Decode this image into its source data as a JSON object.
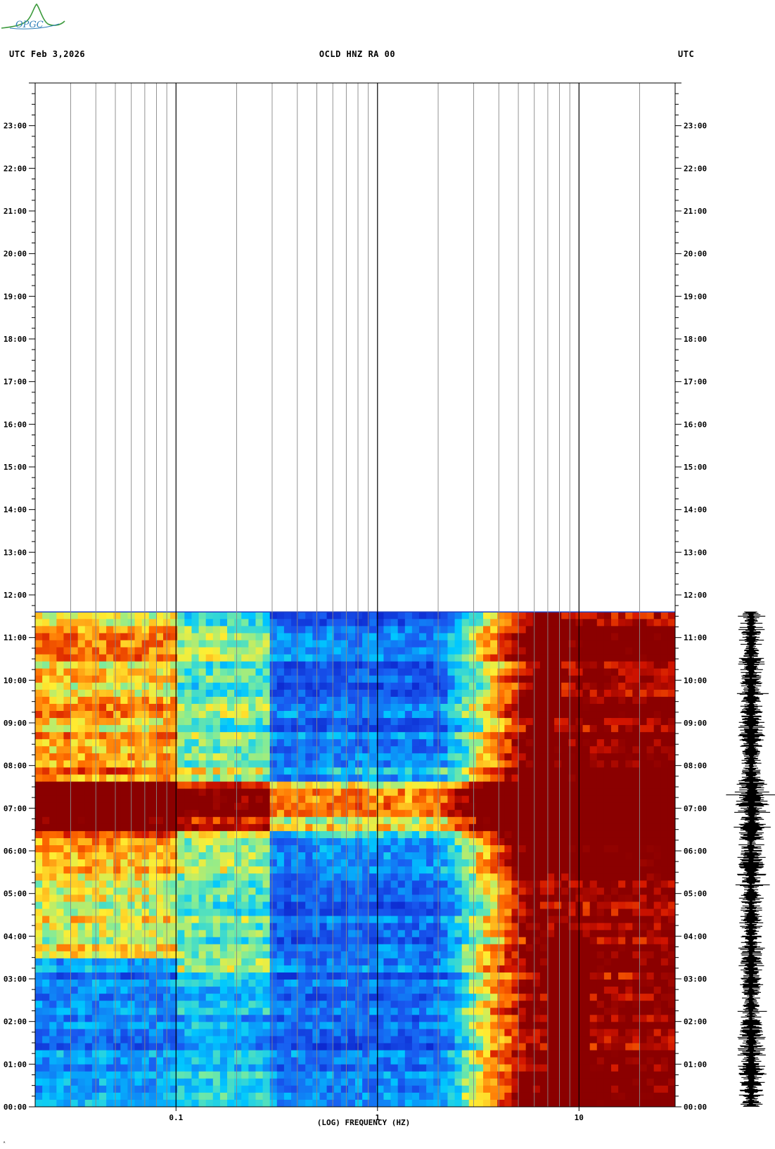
{
  "header": {
    "left": "UTC  Feb 3,2026",
    "center": "OCLD HNZ RA 00",
    "right": "UTC"
  },
  "logo": {
    "text": "OPGC",
    "icon": "opgc-logo-icon"
  },
  "footer": {
    "mark": "ᴬ"
  },
  "colors": {
    "low": "#0a2bd6",
    "mid_low": "#00c8ff",
    "mid": "#ffee33",
    "high": "#ff4400",
    "saturated": "#8b0000",
    "trace": "#000000"
  },
  "chart_data": {
    "type": "heatmap",
    "title": "OCLD HNZ RA 00",
    "subtitle": "UTC  Feb 3,2026",
    "xlabel": "(LOG) FREQUENCY (HZ)",
    "ylabel": "UTC",
    "x_scale": "log",
    "xlim": [
      0.02,
      30
    ],
    "ylim_hours": [
      0,
      24
    ],
    "data_end_hour": 11.6,
    "x_ticks": [
      {
        "value": 0.1,
        "label": "0.1"
      },
      {
        "value": 1,
        "label": "1"
      },
      {
        "value": 10,
        "label": "10"
      }
    ],
    "y_ticks": [
      "00:00",
      "01:00",
      "02:00",
      "03:00",
      "04:00",
      "05:00",
      "06:00",
      "07:00",
      "08:00",
      "09:00",
      "10:00",
      "11:00",
      "12:00",
      "13:00",
      "14:00",
      "15:00",
      "16:00",
      "17:00",
      "18:00",
      "19:00",
      "20:00",
      "21:00",
      "22:00",
      "23:00"
    ],
    "y_tick_hours": [
      0,
      1,
      2,
      3,
      4,
      5,
      6,
      7,
      8,
      9,
      10,
      11,
      12,
      13,
      14,
      15,
      16,
      17,
      18,
      19,
      20,
      21,
      22,
      23
    ],
    "grid": true,
    "colorbar": false,
    "annotations": {
      "strong_event_hours": [
        6.4,
        7.7
      ],
      "saturation_above_hz": 5
    }
  }
}
